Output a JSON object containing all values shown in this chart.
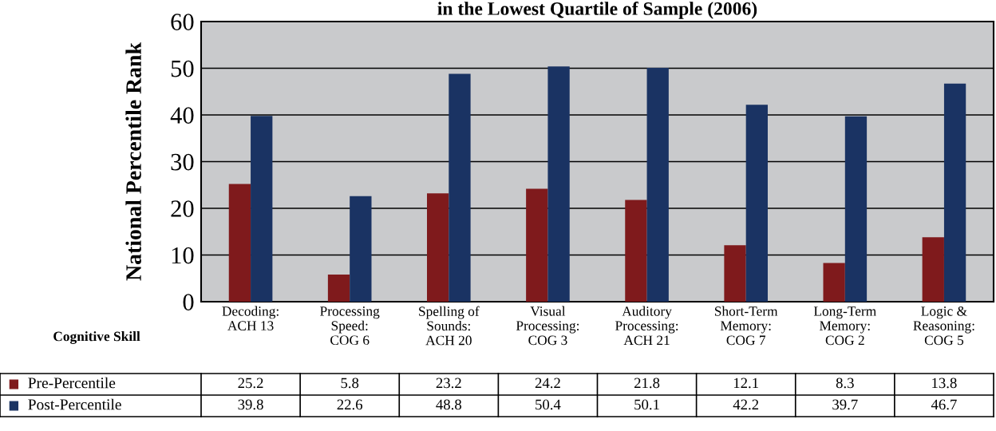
{
  "chart_data": {
    "type": "bar",
    "title": "in the Lowest Quartile of Sample (2006)",
    "ylabel": "National Percentile Rank",
    "xlabel": "Cognitive Skill",
    "categories": [
      "Decoding:\nACH 13",
      "Processing\nSpeed:\nCOG 6",
      "Spelling of\nSounds:\nACH 20",
      "Visual\nProcessing:\nCOG 3",
      "Auditory\nProcessing:\nACH 21",
      "Short-Term\nMemory:\nCOG 7",
      "Long-Term\nMemory:\nCOG 2",
      "Logic &\nReasoning:\nCOG 5"
    ],
    "series": [
      {
        "name": "Pre-Percentile",
        "color": "#7f1a1c",
        "values": [
          25.2,
          5.8,
          23.2,
          24.2,
          21.8,
          12.1,
          8.3,
          13.8
        ]
      },
      {
        "name": "Post-Percentile",
        "color": "#1a3363",
        "values": [
          39.8,
          22.6,
          48.8,
          50.4,
          50.1,
          42.2,
          39.7,
          46.7
        ]
      }
    ],
    "ylim": [
      0,
      60
    ],
    "yticks": [
      0,
      10,
      20,
      30,
      40,
      50,
      60
    ],
    "grid": "y",
    "data_labels": true,
    "legend": "bottom"
  }
}
